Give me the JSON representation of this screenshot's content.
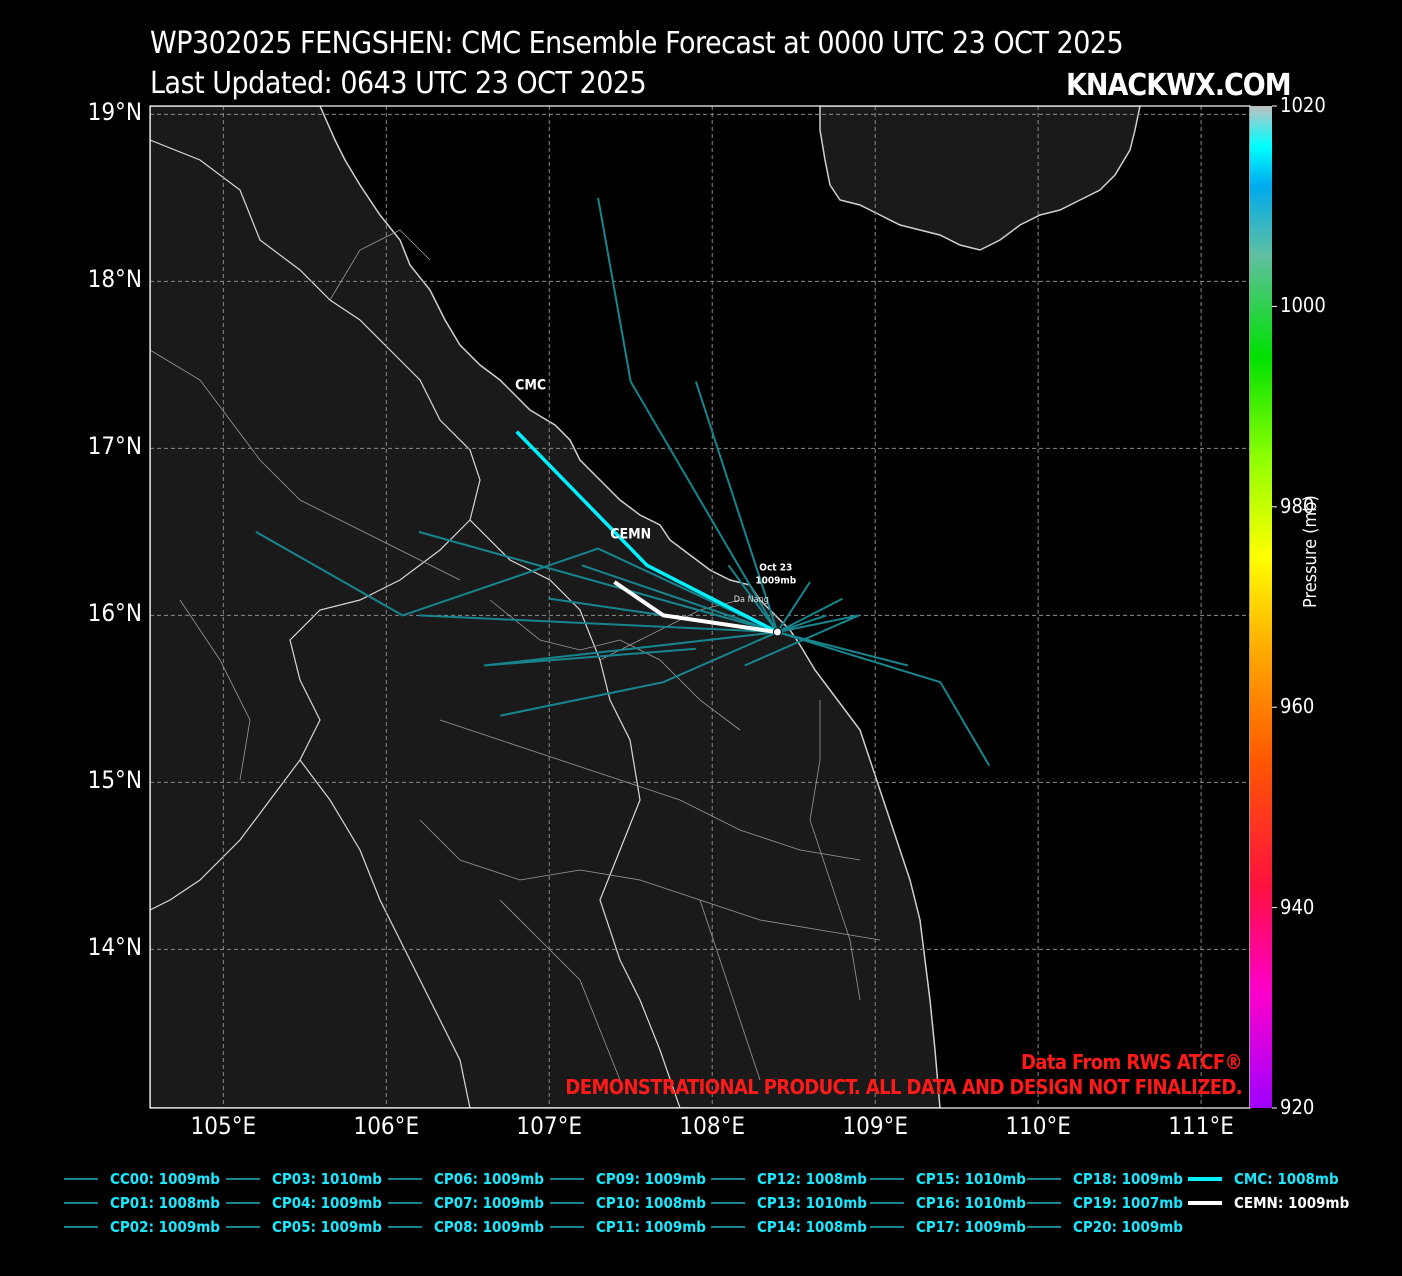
{
  "header": {
    "title": "WP302025 FENGSHEN: CMC Ensemble Forecast at 0000 UTC 23 OCT 2025",
    "updated": "Last Updated: 0643 UTC 23 OCT 2025",
    "brand": "KNACKWX.COM"
  },
  "map": {
    "lat_ticks": [
      {
        "lat": 19,
        "label": "19°N"
      },
      {
        "lat": 18,
        "label": "18°N"
      },
      {
        "lat": 17,
        "label": "17°N"
      },
      {
        "lat": 16,
        "label": "16°N"
      },
      {
        "lat": 15,
        "label": "15°N"
      },
      {
        "lat": 14,
        "label": "14°N"
      }
    ],
    "lon_ticks": [
      {
        "lon": 105,
        "label": "105°E"
      },
      {
        "lon": 106,
        "label": "106°E"
      },
      {
        "lon": 107,
        "label": "107°E"
      },
      {
        "lon": 108,
        "label": "108°E"
      },
      {
        "lon": 109,
        "label": "109°E"
      },
      {
        "lon": 110,
        "label": "110°E"
      },
      {
        "lon": 111,
        "label": "111°E"
      }
    ],
    "extent": {
      "lon_min": 104.55,
      "lon_max": 111.3,
      "lat_min": 13.05,
      "lat_max": 19.05
    },
    "colors": {
      "land": "#1a1a1a",
      "ocean": "#000000",
      "member_track": "#17858e",
      "cmc_track": "#00f0ff",
      "cemn_track": "#ffffff"
    },
    "city_label": "Da Nang",
    "init_label": {
      "date": "Oct 23",
      "pressure": "1009mb"
    },
    "track_labels": {
      "cmc": "CMC",
      "cemn": "CEMN"
    }
  },
  "tracks": {
    "members": [
      [
        [
          108.4,
          15.9
        ],
        [
          107.9,
          17.4
        ]
      ],
      [
        [
          108.4,
          15.9
        ],
        [
          107.5,
          17.4
        ],
        [
          107.3,
          18.5
        ]
      ],
      [
        [
          108.4,
          15.9
        ],
        [
          107.2,
          16.3
        ]
      ],
      [
        [
          108.4,
          15.9
        ],
        [
          106.2,
          16.5
        ]
      ],
      [
        [
          108.4,
          15.9
        ],
        [
          107.3,
          16.4
        ],
        [
          106.1,
          16.0
        ],
        [
          105.2,
          16.5
        ]
      ],
      [
        [
          108.4,
          15.9
        ],
        [
          106.2,
          16.0
        ]
      ],
      [
        [
          108.4,
          15.9
        ],
        [
          106.6,
          15.7
        ],
        [
          107.9,
          15.8
        ]
      ],
      [
        [
          108.4,
          15.9
        ],
        [
          107.7,
          15.6
        ],
        [
          106.7,
          15.4
        ]
      ],
      [
        [
          108.4,
          15.9
        ],
        [
          109.2,
          15.7
        ]
      ],
      [
        [
          108.4,
          15.9
        ],
        [
          109.4,
          15.6
        ],
        [
          109.7,
          15.1
        ]
      ],
      [
        [
          108.4,
          15.9
        ],
        [
          108.8,
          16.1
        ]
      ],
      [
        [
          108.4,
          15.9
        ],
        [
          107.0,
          16.1
        ]
      ],
      [
        [
          108.4,
          15.9
        ],
        [
          108.9,
          16.0
        ],
        [
          108.2,
          15.7
        ]
      ],
      [
        [
          108.4,
          15.9
        ],
        [
          108.7,
          16.0
        ]
      ],
      [
        [
          108.4,
          15.9
        ],
        [
          108.6,
          16.2
        ]
      ],
      [
        [
          108.4,
          15.9
        ],
        [
          108.1,
          16.3
        ]
      ]
    ],
    "cmc": [
      [
        108.4,
        15.9
      ],
      [
        107.6,
        16.3
      ],
      [
        107.4,
        16.5
      ],
      [
        106.8,
        17.1
      ]
    ],
    "cemn": [
      [
        108.4,
        15.9
      ],
      [
        107.7,
        16.0
      ],
      [
        107.4,
        16.2
      ]
    ]
  },
  "colorbar": {
    "title": "Pressure (mb)",
    "ticks": [
      "1020",
      "1000",
      "980",
      "960",
      "940",
      "920"
    ],
    "range": [
      920,
      1020
    ]
  },
  "footer": {
    "source": "Data From RWS ATCF®",
    "disclaimer": "DEMONSTRATIONAL PRODUCT. ALL DATA AND DESIGN NOT FINALIZED."
  },
  "legend": {
    "items": [
      [
        "CC00: 1009mb",
        "CP01: 1008mb",
        "CP02: 1009mb"
      ],
      [
        "CP03: 1010mb",
        "CP04: 1009mb",
        "CP05: 1009mb"
      ],
      [
        "CP06: 1009mb",
        "CP07: 1009mb",
        "CP08: 1009mb"
      ],
      [
        "CP09: 1009mb",
        "CP10: 1008mb",
        "CP11: 1009mb"
      ],
      [
        "CP12: 1008mb",
        "CP13: 1010mb",
        "CP14: 1008mb"
      ],
      [
        "CP15: 1010mb",
        "CP16: 1010mb",
        "CP17: 1009mb"
      ],
      [
        "CP18: 1009mb",
        "CP19: 1007mb",
        "CP20: 1009mb"
      ],
      [
        "CMC: 1008mb",
        "CEMN: 1009mb"
      ]
    ]
  }
}
